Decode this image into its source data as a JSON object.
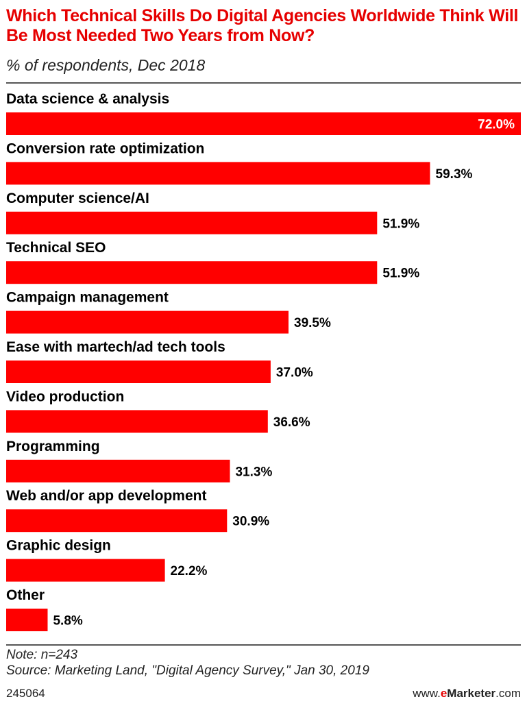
{
  "header": {
    "title": "Which Technical Skills Do Digital Agencies Worldwide Think Will Be Most Needed Two Years from Now?",
    "subtitle": "% of respondents, Dec 2018"
  },
  "chart_data": {
    "type": "bar",
    "orientation": "horizontal",
    "categories": [
      "Data science & analysis",
      "Conversion rate optimization",
      "Computer science/AI",
      "Technical SEO",
      "Campaign management",
      "Ease with martech/ad tech tools",
      "Video production",
      "Programming",
      "Web and/or app development",
      "Graphic design",
      "Other"
    ],
    "values": [
      72.0,
      59.3,
      51.9,
      51.9,
      39.5,
      37.0,
      36.6,
      31.3,
      30.9,
      22.2,
      5.8
    ],
    "value_labels": [
      "72.0%",
      "59.3%",
      "51.9%",
      "51.9%",
      "39.5%",
      "37.0%",
      "36.6%",
      "31.3%",
      "30.9%",
      "22.2%",
      "5.8%"
    ],
    "bar_color": "#ff0000",
    "xlim": [
      0,
      72
    ],
    "grid": false,
    "legend": "none"
  },
  "footer": {
    "note": "Note: n=243",
    "source": "Source: Marketing Land, \"Digital Agency Survey,\" Jan 30, 2019",
    "chart_id": "245064",
    "brand_prefix": "www.",
    "brand_e": "e",
    "brand_name": "Marketer",
    "brand_suffix": ".com"
  },
  "colors": {
    "title": "#e60000",
    "bar": "#ff0000",
    "rule": "#555555"
  }
}
